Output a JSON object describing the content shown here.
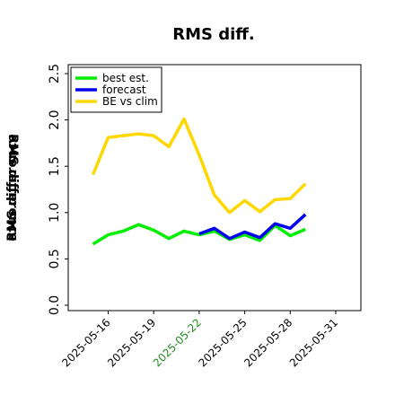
{
  "chart_data": {
    "type": "line",
    "title": "RMS diff.",
    "ylabel": "RMS difference",
    "ylabel_right": "RMS difference",
    "ylim": [
      0,
      2.5
    ],
    "yticks": [
      "0.0",
      "0.5",
      "1.0",
      "1.5",
      "2.0",
      "2.5"
    ],
    "xticks": [
      "2025-05-16",
      "2025-05-19",
      "2025-05-22",
      "2025-05-25",
      "2025-05-28",
      "2025-05-31"
    ],
    "highlight_tick": "2025-05-22",
    "colors": {
      "best_est": "#00ee00",
      "forecast": "#0000ee",
      "be_vs_clim": "#ffd700",
      "highlight_tick": "#228b22"
    },
    "legend_placement": "top-left",
    "series": [
      {
        "name": "best est.",
        "color_key": "best_est",
        "x": [
          "2025-05-15",
          "2025-05-16",
          "2025-05-17",
          "2025-05-18",
          "2025-05-19",
          "2025-05-20",
          "2025-05-21",
          "2025-05-22",
          "2025-05-23",
          "2025-05-24",
          "2025-05-25",
          "2025-05-26",
          "2025-05-27",
          "2025-05-28",
          "2025-05-29"
        ],
        "values": [
          0.66,
          0.76,
          0.8,
          0.87,
          0.81,
          0.72,
          0.8,
          0.76,
          0.8,
          0.71,
          0.76,
          0.7,
          0.86,
          0.75,
          0.82
        ]
      },
      {
        "name": "forecast",
        "color_key": "forecast",
        "x": [
          "2025-05-22",
          "2025-05-23",
          "2025-05-24",
          "2025-05-25",
          "2025-05-26",
          "2025-05-27",
          "2025-05-28",
          "2025-05-29"
        ],
        "values": [
          0.77,
          0.83,
          0.72,
          0.79,
          0.73,
          0.88,
          0.83,
          0.98
        ]
      },
      {
        "name": "BE vs clim",
        "color_key": "be_vs_clim",
        "x": [
          "2025-05-15",
          "2025-05-16",
          "2025-05-17",
          "2025-05-18",
          "2025-05-19",
          "2025-05-20",
          "2025-05-21",
          "2025-05-22",
          "2025-05-23",
          "2025-05-24",
          "2025-05-25",
          "2025-05-26",
          "2025-05-27",
          "2025-05-28",
          "2025-05-29"
        ],
        "values": [
          1.41,
          1.81,
          1.83,
          1.85,
          1.83,
          1.71,
          2.01,
          1.62,
          1.19,
          1.0,
          1.13,
          1.01,
          1.14,
          1.15,
          1.31
        ]
      }
    ]
  }
}
